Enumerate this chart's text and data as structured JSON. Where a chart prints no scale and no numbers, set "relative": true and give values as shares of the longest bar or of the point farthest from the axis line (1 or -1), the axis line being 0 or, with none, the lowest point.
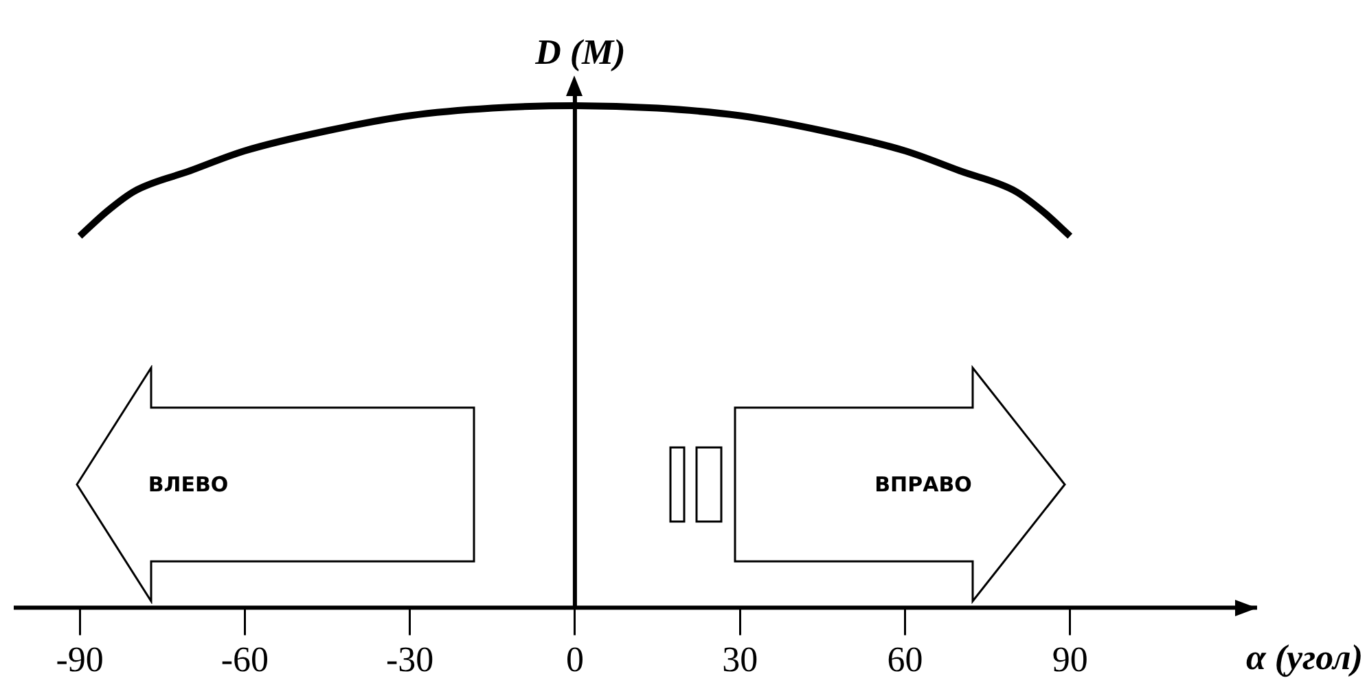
{
  "chart_data": {
    "type": "line",
    "xlabel": "α (угол)",
    "ylabel": "D (M)",
    "relative": true,
    "x": [
      -90,
      -85,
      -80,
      -70,
      -60,
      -45,
      -30,
      -15,
      0,
      15,
      30,
      45,
      60,
      70,
      80,
      85,
      90
    ],
    "series": [
      {
        "color": "#000000",
        "values": [
          0.74,
          0.79,
          0.83,
          0.87,
          0.91,
          0.95,
          0.98,
          0.995,
          1,
          0.995,
          0.98,
          0.95,
          0.91,
          0.87,
          0.83,
          0.79,
          0.74
        ]
      }
    ],
    "xlim": [
      -102,
      124
    ],
    "xticks": [
      -90,
      -60,
      -30,
      0,
      30,
      60,
      90
    ],
    "tick_labels": "x",
    "legend": false,
    "marker": "none",
    "line_style": "solid",
    "annotations": [
      "ВЛЕВО",
      "ВПРАВО"
    ]
  }
}
